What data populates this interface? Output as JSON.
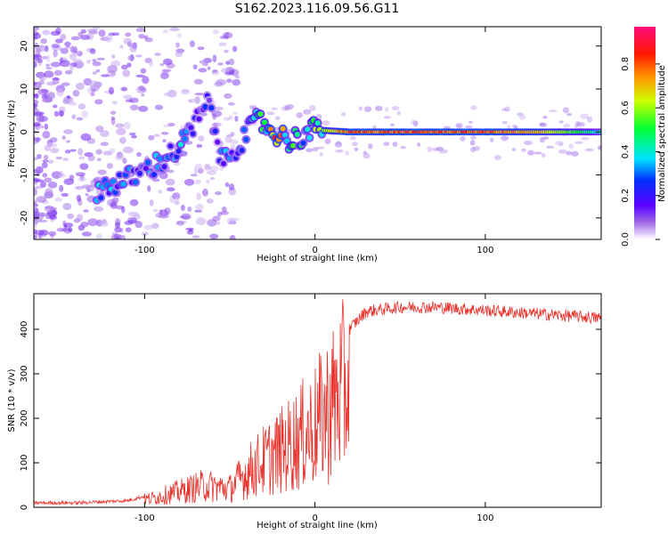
{
  "figure_title": "S162.2023.116.09.56.G11",
  "chart_data": [
    {
      "type": "heatmap",
      "title": "",
      "xlabel": "Height of straight line (km)",
      "ylabel": "Frequency (Hz)",
      "xlim": [
        -165,
        168
      ],
      "ylim": [
        -25,
        24.5
      ],
      "xticks": [
        -100,
        0,
        100
      ],
      "yticks": [
        -20,
        -10,
        0,
        10,
        20
      ],
      "colorbar": {
        "label": "Normalized spectral amplitude",
        "range": [
          0,
          0.97
        ],
        "ticks": [
          0.0,
          0.2,
          0.4,
          0.6,
          0.8
        ],
        "colormap": [
          "#ffffff",
          "#8a2be2",
          "#0000ff",
          "#00e5ff",
          "#00ff00",
          "#ffff00",
          "#ff8c00",
          "#ff0000",
          "#ff1493"
        ]
      },
      "ridge": {
        "description_points": [
          {
            "x": -125,
            "y": -13,
            "amp": 0.35
          },
          {
            "x": -110,
            "y": -11,
            "amp": 0.3
          },
          {
            "x": -95,
            "y": -8,
            "amp": 0.3
          },
          {
            "x": -80,
            "y": -4,
            "amp": 0.35
          },
          {
            "x": -62,
            "y": 7,
            "amp": 0.2
          },
          {
            "x": -55,
            "y": -7,
            "amp": 0.3
          },
          {
            "x": -45,
            "y": -3,
            "amp": 0.3
          },
          {
            "x": -33,
            "y": 3,
            "amp": 0.45
          },
          {
            "x": -25,
            "y": 0,
            "amp": 0.85
          },
          {
            "x": -14,
            "y": -2,
            "amp": 0.45
          },
          {
            "x": 0,
            "y": 0.5,
            "amp": 0.55
          },
          {
            "x": 20,
            "y": 0,
            "amp": 0.85
          },
          {
            "x": 60,
            "y": 0,
            "amp": 0.85
          },
          {
            "x": 100,
            "y": 0,
            "amp": 0.85
          },
          {
            "x": 140,
            "y": 0,
            "amp": 0.7
          },
          {
            "x": 168,
            "y": 0,
            "amp": 0.4
          }
        ]
      }
    },
    {
      "type": "line",
      "title": "",
      "xlabel": "Height of straight line (km)",
      "ylabel": "SNR (10 * v/v)",
      "xlim": [
        -165,
        168
      ],
      "ylim": [
        0,
        480
      ],
      "xticks": [
        -100,
        0,
        100
      ],
      "yticks": [
        0,
        100,
        200,
        300,
        400
      ],
      "line_color": "#e8302a",
      "envelope": {
        "x": [
          -165,
          -140,
          -110,
          -95,
          -80,
          -65,
          -50,
          -40,
          -30,
          -20,
          -10,
          0,
          10,
          20,
          30,
          50,
          70,
          90,
          110,
          130,
          150,
          168
        ],
        "y": [
          10,
          10,
          15,
          30,
          50,
          70,
          60,
          110,
          150,
          180,
          220,
          260,
          330,
          400,
          440,
          450,
          450,
          445,
          440,
          435,
          430,
          425
        ]
      }
    }
  ]
}
